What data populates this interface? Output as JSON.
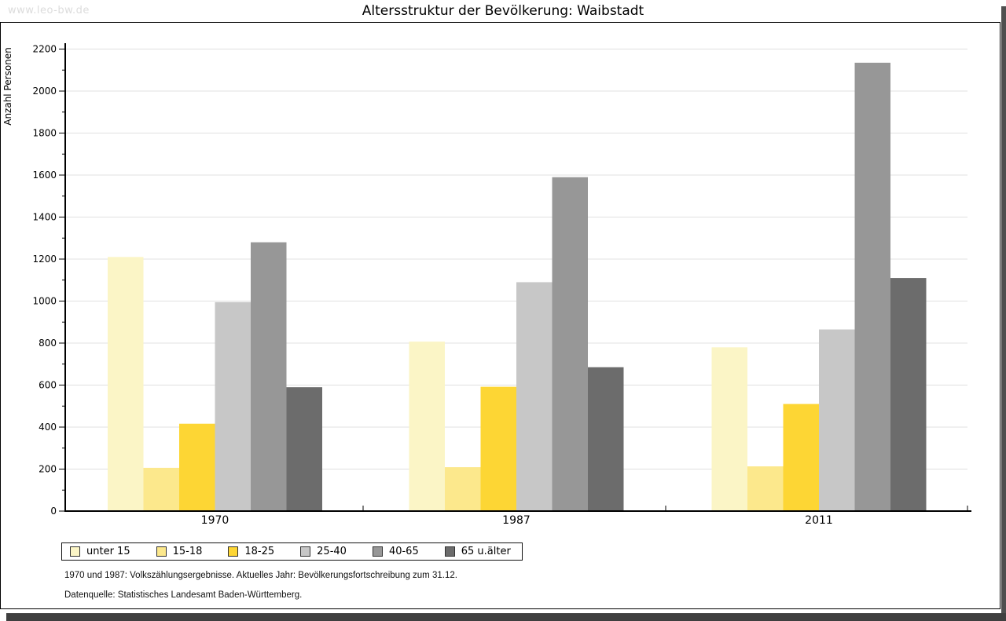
{
  "watermark": "www.leo-bw.de",
  "title": "Altersstruktur der Bevölkerung: Waibstadt",
  "footnotes": {
    "line1": "1970 und 1987: Volkszählungsergebnisse. Aktuelles Jahr: Bevölkerungsfortschreibung zum 31.12.",
    "line2": "Datenquelle: Statistisches Landesamt Baden-Württemberg."
  },
  "colors": {
    "axis": "#000000",
    "grid": "#e0e0e0",
    "frame_border": "#000000",
    "frame_shadow": "#4f4f4f",
    "watermark": "#dcdcdc",
    "background": "#ffffff"
  },
  "chart_data": {
    "type": "bar",
    "title": "Altersstruktur der Bevölkerung: Waibstadt",
    "categories": [
      "1970",
      "1987",
      "2011"
    ],
    "series": [
      {
        "name": "unter 15",
        "color": "#fbf5c6",
        "values": [
          1210,
          807,
          780
        ]
      },
      {
        "name": "15-18",
        "color": "#fce88c",
        "values": [
          206,
          209,
          213
        ]
      },
      {
        "name": "18-25",
        "color": "#fdd634",
        "values": [
          416,
          592,
          510
        ]
      },
      {
        "name": "25-40",
        "color": "#c7c7c7",
        "values": [
          995,
          1090,
          865
        ]
      },
      {
        "name": "40-65",
        "color": "#979797",
        "values": [
          1280,
          1590,
          2135
        ]
      },
      {
        "name": "65 u.älter",
        "color": "#6c6c6c",
        "values": [
          590,
          685,
          1110
        ]
      }
    ],
    "xlabel": "",
    "ylabel": "Anzahl Personen",
    "ylim": [
      0,
      2200
    ],
    "ytick_step": 200,
    "minor_tick_step": 100,
    "grid": true,
    "legend_position": "bottom-left",
    "bar_group_gap": true
  }
}
